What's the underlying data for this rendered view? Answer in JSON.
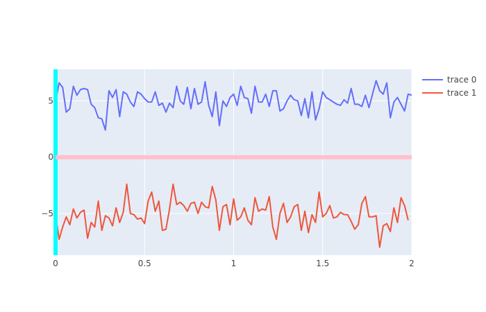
{
  "chart_data": {
    "type": "line",
    "title": "",
    "xlabel": "",
    "ylabel": "",
    "xlim": [
      0,
      2
    ],
    "ylim": [
      -8.7,
      7.8
    ],
    "x_ticks": [
      0,
      0.5,
      1,
      1.5,
      2
    ],
    "x_tick_labels": [
      "0",
      "0.5",
      "1",
      "1.5",
      "2"
    ],
    "y_ticks": [
      -5,
      0,
      5
    ],
    "y_tick_labels": [
      "−5",
      "0",
      "5"
    ],
    "grid": true,
    "legend": "top-right",
    "shapes": [
      {
        "kind": "vertical-line",
        "x": 0,
        "color": "#00ffff"
      },
      {
        "kind": "horizontal-line",
        "y": 0,
        "color": "#ffc0cb"
      }
    ],
    "series": [
      {
        "name": "trace 0",
        "color": "#636efa",
        "x_start": 0,
        "x_step": 0.02,
        "values": [
          4.9,
          6.6,
          6.2,
          4.0,
          4.3,
          6.3,
          5.5,
          6.0,
          6.1,
          6.0,
          4.7,
          4.4,
          3.5,
          3.4,
          2.4,
          5.9,
          5.3,
          6.0,
          3.6,
          5.8,
          5.6,
          4.9,
          4.5,
          5.8,
          5.6,
          5.2,
          4.9,
          4.9,
          5.8,
          4.6,
          4.8,
          4.0,
          4.8,
          4.4,
          6.3,
          5.0,
          4.7,
          6.2,
          4.3,
          6.1,
          4.7,
          4.9,
          6.7,
          4.6,
          3.6,
          5.8,
          2.8,
          5.0,
          4.5,
          5.3,
          5.6,
          4.6,
          6.3,
          5.3,
          5.2,
          3.9,
          6.3,
          4.9,
          4.9,
          5.6,
          4.5,
          5.9,
          5.9,
          4.1,
          4.3,
          5.0,
          5.5,
          5.1,
          5.0,
          3.7,
          5.2,
          3.5,
          5.8,
          3.3,
          4.3,
          5.8,
          5.3,
          5.1,
          4.9,
          4.7,
          4.6,
          5.1,
          4.8,
          6.1,
          4.7,
          4.7,
          4.5,
          5.5,
          4.4,
          5.6,
          6.8,
          5.9,
          5.6,
          6.6,
          3.5,
          4.9,
          5.3,
          4.7,
          4.1,
          5.6,
          5.5
        ]
      },
      {
        "name": "trace 1",
        "color": "#ef553b",
        "x_start": 0,
        "x_step": 0.02,
        "values": [
          -5.1,
          -7.3,
          -6.2,
          -5.3,
          -6.0,
          -4.6,
          -5.4,
          -4.9,
          -4.7,
          -7.2,
          -5.8,
          -6.2,
          -3.9,
          -6.5,
          -5.2,
          -5.4,
          -6.1,
          -4.5,
          -5.8,
          -4.9,
          -2.4,
          -5.0,
          -5.1,
          -5.5,
          -5.4,
          -5.9,
          -3.9,
          -3.1,
          -4.8,
          -3.9,
          -6.5,
          -6.4,
          -4.6,
          -2.4,
          -4.2,
          -4.0,
          -4.3,
          -4.8,
          -4.1,
          -4.0,
          -5.0,
          -4.0,
          -4.4,
          -4.5,
          -2.6,
          -3.8,
          -6.5,
          -4.4,
          -4.2,
          -6.0,
          -3.7,
          -5.6,
          -5.3,
          -4.5,
          -5.6,
          -6.0,
          -3.6,
          -4.8,
          -4.6,
          -4.7,
          -3.5,
          -6.2,
          -7.3,
          -5.0,
          -4.1,
          -5.8,
          -5.3,
          -4.4,
          -4.2,
          -6.5,
          -4.8,
          -6.7,
          -5.1,
          -5.8,
          -3.1,
          -5.3,
          -5.0,
          -4.3,
          -5.4,
          -5.3,
          -4.9,
          -5.1,
          -5.1,
          -5.7,
          -6.4,
          -6.0,
          -4.1,
          -3.5,
          -5.3,
          -5.3,
          -5.2,
          -8.0,
          -6.1,
          -5.9,
          -6.6,
          -4.5,
          -5.8,
          -3.6,
          -4.3,
          -5.6
        ]
      }
    ]
  }
}
